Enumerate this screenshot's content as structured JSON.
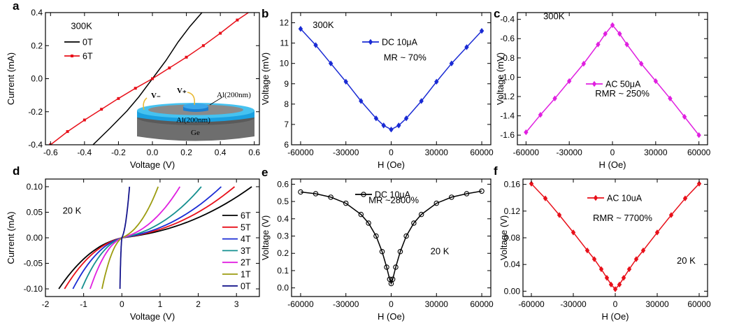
{
  "chart_data": [
    {
      "panel": "a",
      "type": "line",
      "xlabel": "Voltage (V)",
      "ylabel": "Current (mA)",
      "xlim": [
        -0.63,
        0.63
      ],
      "ylim": [
        -0.4,
        0.4
      ],
      "xticks": [
        -0.6,
        -0.4,
        -0.2,
        0.0,
        0.2,
        0.4,
        0.6
      ],
      "yticks": [
        -0.4,
        -0.2,
        0.0,
        0.2,
        0.4
      ],
      "xticklabels": [
        "-0.6",
        "-0.4",
        "-0.2",
        "0.0",
        "0.2",
        "0.4",
        "0.6"
      ],
      "yticklabels": [
        "-0.4",
        "-0.2",
        "0.0",
        "0.2",
        "0.4"
      ],
      "annotations": [
        {
          "text": "300K",
          "x": -0.48,
          "y": 0.3
        }
      ],
      "legend": "left",
      "inset": {
        "labels": [
          "V₋",
          "V₊",
          "Al(200nm)",
          "Al(200nm)",
          "Ge"
        ]
      },
      "series": [
        {
          "name": "0T",
          "color": "#000000",
          "marker": "none",
          "x": [
            -0.35,
            -0.25,
            -0.15,
            -0.08,
            0.0,
            0.08,
            0.15,
            0.22,
            0.3
          ],
          "y": [
            -0.4,
            -0.3,
            -0.195,
            -0.11,
            0.0,
            0.11,
            0.22,
            0.315,
            0.41
          ]
        },
        {
          "name": "6T",
          "color": "#e8101a",
          "marker": "square",
          "x": [
            -0.6,
            -0.5,
            -0.4,
            -0.3,
            -0.2,
            -0.1,
            0.0,
            0.1,
            0.2,
            0.3,
            0.4,
            0.5,
            0.58
          ],
          "y": [
            -0.4,
            -0.32,
            -0.25,
            -0.185,
            -0.12,
            -0.058,
            0.0,
            0.065,
            0.13,
            0.2,
            0.275,
            0.355,
            0.41
          ]
        }
      ]
    },
    {
      "panel": "b",
      "type": "line",
      "xlabel": "H (Oe)",
      "ylabel": "Voltage (mV)",
      "xlim": [
        -66000,
        66000
      ],
      "ylim": [
        6,
        12.5
      ],
      "xticks": [
        -60000,
        -30000,
        0,
        30000,
        60000
      ],
      "yticks": [
        6,
        7,
        8,
        9,
        10,
        11,
        12
      ],
      "xticklabels": [
        "-60000",
        "-30000",
        "0",
        "30000",
        "60000"
      ],
      "yticklabels": [
        "6",
        "7",
        "8",
        "9",
        "10",
        "11",
        "12"
      ],
      "annotations": [
        {
          "text": "300K",
          "x": -52000,
          "y": 11.75
        },
        {
          "text": "MR ~ 70%",
          "x": -5000,
          "y": 10.15
        }
      ],
      "series": [
        {
          "name": "DC 10μA",
          "color": "#1a2bd4",
          "marker": "diamond",
          "x": [
            -60000,
            -50000,
            -40000,
            -30000,
            -20000,
            -10000,
            -5000,
            0,
            5000,
            10000,
            20000,
            30000,
            40000,
            50000,
            60000
          ],
          "y": [
            11.7,
            10.9,
            10.0,
            9.1,
            8.15,
            7.3,
            6.95,
            6.75,
            6.95,
            7.3,
            8.15,
            9.1,
            10.0,
            10.8,
            11.6
          ]
        }
      ]
    },
    {
      "panel": "c",
      "type": "line",
      "xlabel": "H (Oe)",
      "ylabel": "Voltage (mV)",
      "xlim": [
        -66000,
        66000
      ],
      "ylim": [
        -1.7,
        -0.33
      ],
      "xticks": [
        -60000,
        -30000,
        0,
        30000,
        60000
      ],
      "yticks": [
        -1.6,
        -1.4,
        -1.2,
        -1.0,
        -0.8,
        -0.6,
        -0.4
      ],
      "xticklabels": [
        "-60000",
        "-30000",
        "0",
        "30000",
        "60000"
      ],
      "yticklabels": [
        "-1.6",
        "-1.4",
        "-1.2",
        "-1.0",
        "-0.8",
        "-0.6",
        "-0.4"
      ],
      "annotations": [
        {
          "text": "300K",
          "x": -48000,
          "y": -0.4
        },
        {
          "text": "RMR ~ 250%",
          "x": -12000,
          "y": -1.2
        }
      ],
      "series": [
        {
          "name": "AC 50μA",
          "color": "#e020e0",
          "marker": "diamond",
          "x": [
            -60000,
            -50000,
            -40000,
            -30000,
            -20000,
            -10000,
            -5000,
            0,
            5000,
            10000,
            20000,
            30000,
            40000,
            50000,
            60000
          ],
          "y": [
            -1.57,
            -1.39,
            -1.22,
            -1.04,
            -0.86,
            -0.66,
            -0.55,
            -0.46,
            -0.55,
            -0.66,
            -0.86,
            -1.04,
            -1.22,
            -1.41,
            -1.6
          ]
        }
      ]
    },
    {
      "panel": "d",
      "type": "line",
      "xlabel": "Voltage (V)",
      "ylabel": "Current (mA)",
      "xlim": [
        -2,
        3.6
      ],
      "ylim": [
        -0.115,
        0.115
      ],
      "xticks": [
        -2,
        -1,
        0,
        1,
        2,
        3
      ],
      "yticks": [
        -0.1,
        -0.05,
        0.0,
        0.05,
        0.1
      ],
      "xticklabels": [
        "-2",
        "-1",
        "0",
        "1",
        "2",
        "3"
      ],
      "yticklabels": [
        "-0.10",
        "-0.05",
        "0.00",
        "0.05",
        "0.10"
      ],
      "annotations": [
        {
          "text": "20 K",
          "x": -1.55,
          "y": 0.047
        }
      ],
      "series": [
        {
          "name": "6T",
          "color": "#000000",
          "vmin": -1.65,
          "vmax": 3.4
        },
        {
          "name": "5T",
          "color": "#e8101a",
          "vmin": -1.5,
          "vmax": 2.95
        },
        {
          "name": "4T",
          "color": "#1a2bd4",
          "vmin": -1.28,
          "vmax": 2.6
        },
        {
          "name": "3T",
          "color": "#169090",
          "vmin": -1.05,
          "vmax": 2.08
        },
        {
          "name": "2T",
          "color": "#e020e0",
          "vmin": -0.83,
          "vmax": 1.52
        },
        {
          "name": "1T",
          "color": "#9c9c10",
          "vmin": -0.52,
          "vmax": 0.95
        },
        {
          "name": "0T",
          "color": "#14148c",
          "vmin": -0.05,
          "vmax": 0.2
        }
      ]
    },
    {
      "panel": "e",
      "type": "line",
      "xlabel": "H (Oe)",
      "ylabel": "Voltage (V)",
      "xlim": [
        -66000,
        66000
      ],
      "ylim": [
        -0.05,
        0.63
      ],
      "xticks": [
        -60000,
        -30000,
        0,
        30000,
        60000
      ],
      "yticks": [
        0.0,
        0.1,
        0.2,
        0.3,
        0.4,
        0.5,
        0.6
      ],
      "xticklabels": [
        "-60000",
        "-30000",
        "0",
        "30000",
        "60000"
      ],
      "yticklabels": [
        "0.0",
        "0.1",
        "0.2",
        "0.3",
        "0.4",
        "0.5",
        "0.6"
      ],
      "annotations": [
        {
          "text": "MR ~2800%",
          "x": -15000,
          "y": 0.49
        },
        {
          "text": "20 K",
          "x": 26000,
          "y": 0.195
        }
      ],
      "series": [
        {
          "name": "DC 10μA",
          "color": "#000000",
          "marker": "circle-open",
          "x": [
            -60000,
            -50000,
            -40000,
            -30000,
            -20000,
            -15000,
            -10000,
            -6000,
            -3000,
            -1000,
            0,
            1000,
            3000,
            6000,
            10000,
            15000,
            20000,
            30000,
            40000,
            50000,
            60000
          ],
          "y": [
            0.555,
            0.545,
            0.525,
            0.49,
            0.425,
            0.375,
            0.3,
            0.21,
            0.12,
            0.05,
            0.025,
            0.05,
            0.12,
            0.21,
            0.3,
            0.375,
            0.425,
            0.49,
            0.525,
            0.545,
            0.56
          ]
        }
      ]
    },
    {
      "panel": "f",
      "type": "line",
      "xlabel": "H (Oe)",
      "ylabel": "Voltage (V)",
      "xlim": [
        -66000,
        66000
      ],
      "ylim": [
        -0.008,
        0.168
      ],
      "xticks": [
        -60000,
        -30000,
        0,
        30000,
        60000
      ],
      "yticks": [
        0.0,
        0.04,
        0.08,
        0.12,
        0.16
      ],
      "xticklabels": [
        "-60000",
        "-30000",
        "0",
        "30000",
        "60000"
      ],
      "yticklabels": [
        "0.00",
        "0.04",
        "0.08",
        "0.12",
        "0.16"
      ],
      "annotations": [
        {
          "text": "RMR ~ 7700%",
          "x": -16000,
          "y": 0.105
        },
        {
          "text": "20 K",
          "x": 44000,
          "y": 0.041
        }
      ],
      "series": [
        {
          "name": "AC 10uA",
          "color": "#e8101a",
          "marker": "diamond",
          "x": [
            -60000,
            -50000,
            -40000,
            -30000,
            -20000,
            -15000,
            -10000,
            -6000,
            -3000,
            0,
            3000,
            6000,
            10000,
            15000,
            20000,
            30000,
            40000,
            50000,
            60000
          ],
          "y": [
            0.161,
            0.139,
            0.114,
            0.088,
            0.061,
            0.048,
            0.033,
            0.02,
            0.01,
            0.003,
            0.01,
            0.02,
            0.033,
            0.048,
            0.061,
            0.088,
            0.114,
            0.139,
            0.161
          ]
        }
      ]
    }
  ]
}
